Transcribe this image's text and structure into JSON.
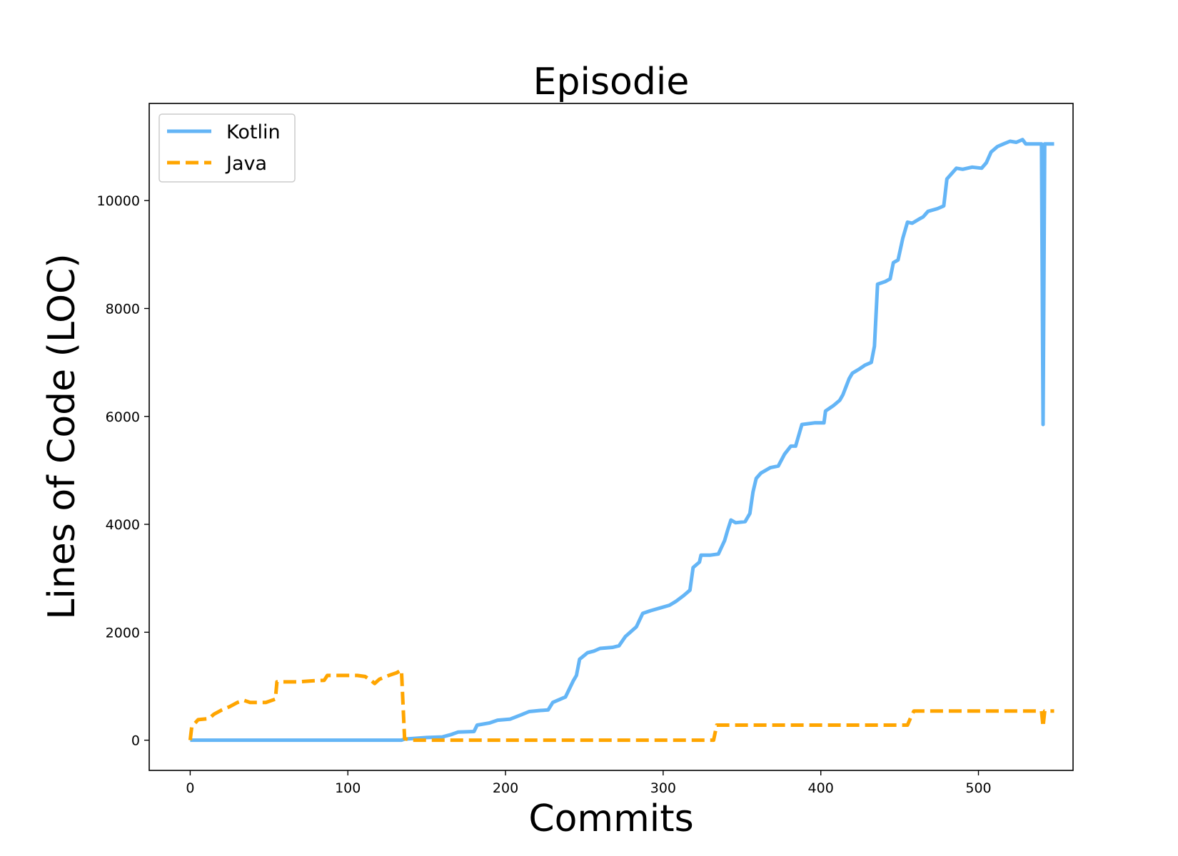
{
  "chart_data": {
    "type": "line",
    "title": "Episodie",
    "xlabel": "Commits",
    "ylabel": "Lines of Code (LOC)",
    "xlim": [
      -26,
      560
    ],
    "ylim": [
      -560,
      11800
    ],
    "xticks": [
      0,
      100,
      200,
      300,
      400,
      500
    ],
    "yticks": [
      0,
      2000,
      4000,
      6000,
      8000,
      10000
    ],
    "grid": false,
    "legend_position": "top-left",
    "series": [
      {
        "name": "Kotlin",
        "color": "#64b5f6",
        "dash": "solid",
        "points": [
          [
            0,
            0
          ],
          [
            134,
            0
          ],
          [
            136,
            20
          ],
          [
            150,
            50
          ],
          [
            160,
            60
          ],
          [
            165,
            100
          ],
          [
            170,
            150
          ],
          [
            180,
            160
          ],
          [
            182,
            280
          ],
          [
            190,
            320
          ],
          [
            195,
            370
          ],
          [
            203,
            390
          ],
          [
            210,
            470
          ],
          [
            215,
            530
          ],
          [
            222,
            550
          ],
          [
            227,
            560
          ],
          [
            230,
            700
          ],
          [
            238,
            800
          ],
          [
            243,
            1100
          ],
          [
            245,
            1200
          ],
          [
            247,
            1500
          ],
          [
            252,
            1620
          ],
          [
            256,
            1650
          ],
          [
            260,
            1700
          ],
          [
            268,
            1720
          ],
          [
            272,
            1750
          ],
          [
            276,
            1920
          ],
          [
            283,
            2100
          ],
          [
            287,
            2350
          ],
          [
            292,
            2400
          ],
          [
            298,
            2450
          ],
          [
            304,
            2500
          ],
          [
            308,
            2570
          ],
          [
            313,
            2680
          ],
          [
            317,
            2780
          ],
          [
            319,
            3200
          ],
          [
            323,
            3300
          ],
          [
            324,
            3430
          ],
          [
            330,
            3430
          ],
          [
            335,
            3450
          ],
          [
            339,
            3700
          ],
          [
            341,
            3900
          ],
          [
            343,
            4080
          ],
          [
            346,
            4030
          ],
          [
            352,
            4050
          ],
          [
            355,
            4200
          ],
          [
            357,
            4600
          ],
          [
            359,
            4850
          ],
          [
            362,
            4950
          ],
          [
            368,
            5050
          ],
          [
            373,
            5080
          ],
          [
            377,
            5300
          ],
          [
            381,
            5450
          ],
          [
            384,
            5450
          ],
          [
            386,
            5650
          ],
          [
            388,
            5850
          ],
          [
            396,
            5880
          ],
          [
            402,
            5880
          ],
          [
            403,
            6100
          ],
          [
            408,
            6200
          ],
          [
            412,
            6300
          ],
          [
            414,
            6400
          ],
          [
            418,
            6700
          ],
          [
            420,
            6800
          ],
          [
            424,
            6870
          ],
          [
            428,
            6950
          ],
          [
            432,
            7000
          ],
          [
            434,
            7300
          ],
          [
            436,
            8450
          ],
          [
            441,
            8500
          ],
          [
            444,
            8550
          ],
          [
            446,
            8850
          ],
          [
            449,
            8900
          ],
          [
            452,
            9300
          ],
          [
            455,
            9600
          ],
          [
            458,
            9580
          ],
          [
            462,
            9650
          ],
          [
            465,
            9700
          ],
          [
            468,
            9800
          ],
          [
            474,
            9850
          ],
          [
            478,
            9900
          ],
          [
            480,
            10400
          ],
          [
            483,
            10500
          ],
          [
            486,
            10600
          ],
          [
            490,
            10580
          ],
          [
            496,
            10620
          ],
          [
            502,
            10600
          ],
          [
            505,
            10700
          ],
          [
            508,
            10900
          ],
          [
            512,
            11000
          ],
          [
            516,
            11050
          ],
          [
            520,
            11100
          ],
          [
            524,
            11080
          ],
          [
            528,
            11130
          ],
          [
            530,
            11050
          ],
          [
            540,
            11050
          ],
          [
            541,
            5850
          ],
          [
            542,
            11050
          ],
          [
            548,
            11050
          ]
        ]
      },
      {
        "name": "Java",
        "color": "#ffa500",
        "dash": "dashed",
        "points": [
          [
            0,
            0
          ],
          [
            1,
            250
          ],
          [
            5,
            380
          ],
          [
            12,
            400
          ],
          [
            15,
            480
          ],
          [
            20,
            560
          ],
          [
            25,
            620
          ],
          [
            30,
            700
          ],
          [
            34,
            740
          ],
          [
            38,
            700
          ],
          [
            48,
            700
          ],
          [
            54,
            760
          ],
          [
            55,
            1080
          ],
          [
            68,
            1080
          ],
          [
            78,
            1100
          ],
          [
            85,
            1110
          ],
          [
            87,
            1200
          ],
          [
            94,
            1200
          ],
          [
            106,
            1200
          ],
          [
            111,
            1180
          ],
          [
            115,
            1100
          ],
          [
            117,
            1050
          ],
          [
            120,
            1130
          ],
          [
            126,
            1200
          ],
          [
            131,
            1250
          ],
          [
            134,
            1300
          ],
          [
            136,
            30
          ],
          [
            140,
            0
          ],
          [
            200,
            0
          ],
          [
            300,
            0
          ],
          [
            332,
            0
          ],
          [
            334,
            280
          ],
          [
            350,
            280
          ],
          [
            400,
            280
          ],
          [
            455,
            280
          ],
          [
            457,
            420
          ],
          [
            459,
            540
          ],
          [
            500,
            540
          ],
          [
            540,
            540
          ],
          [
            541,
            250
          ],
          [
            542,
            540
          ],
          [
            548,
            540
          ]
        ]
      }
    ]
  }
}
